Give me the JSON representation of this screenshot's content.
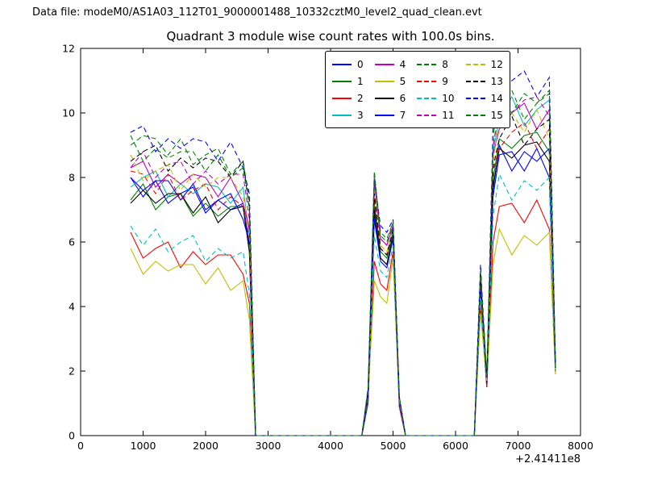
{
  "header": {
    "data_file_label": "Data file: modeM0/AS1A03_112T01_9000001488_10332cztM0_level2_quad_clean.evt"
  },
  "chart_data": {
    "type": "line",
    "title": "Quadrant 3 module wise count rates with 100.0s bins.",
    "xlabel": "",
    "ylabel": "",
    "x_offset_label": "+2.41411e8",
    "xlim": [
      0,
      8000
    ],
    "ylim": [
      0,
      12
    ],
    "x_ticks": [
      0,
      1000,
      2000,
      3000,
      4000,
      5000,
      6000,
      7000,
      8000
    ],
    "y_ticks": [
      0,
      2,
      4,
      6,
      8,
      10,
      12
    ],
    "grid": false,
    "legend_position": "upper center",
    "legend_columns": 4,
    "x": [
      800,
      1000,
      1200,
      1400,
      1600,
      1800,
      2000,
      2200,
      2400,
      2600,
      2700,
      2800,
      3000,
      3500,
      4000,
      4500,
      4600,
      4700,
      4800,
      4900,
      5000,
      5100,
      5200,
      5500,
      6000,
      6300,
      6400,
      6500,
      6600,
      6700,
      6900,
      7100,
      7300,
      7500,
      7600
    ],
    "series": [
      {
        "name": "0",
        "color": "#0000ff",
        "dash": false,
        "values": [
          8.0,
          7.4,
          7.9,
          7.2,
          7.5,
          7.7,
          6.9,
          7.3,
          7.0,
          7.2,
          5.9,
          0,
          0,
          0,
          0,
          0,
          1.0,
          6.9,
          5.5,
          5.3,
          6.2,
          0.9,
          0,
          0,
          0,
          0,
          4.6,
          1.5,
          7.6,
          9.0,
          8.2,
          8.8,
          8.5,
          8.9,
          2.0
        ]
      },
      {
        "name": "1",
        "color": "#008000",
        "dash": false,
        "values": [
          7.3,
          7.8,
          7.0,
          7.4,
          7.5,
          6.8,
          7.2,
          6.8,
          7.1,
          7.1,
          5.7,
          0,
          0,
          0,
          0,
          0,
          1.0,
          7.2,
          5.7,
          5.5,
          6.3,
          0.9,
          0,
          0,
          0,
          0,
          4.7,
          1.5,
          7.9,
          9.2,
          8.9,
          9.3,
          9.4,
          8.8,
          2.0
        ]
      },
      {
        "name": "2",
        "color": "#ff0000",
        "dash": false,
        "values": [
          6.3,
          5.5,
          5.8,
          6.0,
          5.2,
          5.7,
          5.3,
          5.6,
          5.6,
          5.0,
          4.1,
          0,
          0,
          0,
          0,
          0,
          1.1,
          5.4,
          4.7,
          4.5,
          5.7,
          0.9,
          0,
          0,
          0,
          0,
          4.0,
          1.5,
          6.0,
          7.1,
          7.2,
          6.6,
          7.3,
          6.4,
          1.9
        ]
      },
      {
        "name": "3",
        "color": "#00bfbf",
        "dash": false,
        "values": [
          7.7,
          8.0,
          8.2,
          7.4,
          7.8,
          7.5,
          7.8,
          7.7,
          7.2,
          7.7,
          6.2,
          0,
          0,
          0,
          0,
          0,
          1.1,
          8.0,
          6.1,
          5.9,
          6.5,
          1.0,
          0,
          0,
          0,
          0,
          5.0,
          1.6,
          8.8,
          9.8,
          10.5,
          9.6,
          10.1,
          10.4,
          2.1
        ]
      },
      {
        "name": "4",
        "color": "#bf00bf",
        "dash": false,
        "values": [
          8.3,
          8.5,
          7.7,
          8.1,
          7.8,
          8.1,
          8.0,
          7.4,
          8.0,
          7.2,
          6.4,
          0,
          0,
          0,
          0,
          0,
          1.1,
          7.9,
          6.1,
          5.9,
          6.5,
          1.0,
          0,
          0,
          0,
          0,
          5.0,
          1.6,
          8.7,
          9.5,
          10.0,
          10.3,
          9.5,
          10.1,
          2.0
        ]
      },
      {
        "name": "5",
        "color": "#bfbf00",
        "dash": false,
        "values": [
          5.8,
          5.0,
          5.4,
          5.1,
          5.3,
          5.3,
          4.7,
          5.2,
          4.5,
          4.8,
          3.6,
          0,
          0,
          0,
          0,
          0,
          1.2,
          4.8,
          4.3,
          4.1,
          5.5,
          1.0,
          0,
          0,
          0,
          0,
          3.8,
          1.6,
          5.3,
          6.4,
          5.6,
          6.2,
          5.9,
          6.3,
          1.9
        ]
      },
      {
        "name": "6",
        "color": "#000000",
        "dash": false,
        "values": [
          7.2,
          7.6,
          7.2,
          7.5,
          7.5,
          6.9,
          7.4,
          6.6,
          7.0,
          7.1,
          5.7,
          0,
          0,
          0,
          0,
          0,
          1.2,
          7.0,
          5.5,
          5.3,
          6.2,
          1.0,
          0,
          0,
          0,
          0,
          4.6,
          1.6,
          7.7,
          8.9,
          8.6,
          9.0,
          9.1,
          8.5,
          2.0
        ]
      },
      {
        "name": "7",
        "color": "#0000ff",
        "dash": false,
        "values": [
          8.0,
          7.6,
          7.9,
          7.9,
          7.3,
          7.8,
          7.0,
          7.3,
          7.5,
          6.7,
          6.0,
          0,
          0,
          0,
          0,
          0,
          1.2,
          6.7,
          5.4,
          5.2,
          6.1,
          1.0,
          0,
          0,
          0,
          0,
          4.5,
          1.6,
          7.4,
          8.7,
          8.8,
          8.2,
          8.9,
          8.0,
          2.0
        ]
      },
      {
        "name": "8",
        "color": "#008000",
        "dash": true,
        "values": [
          9.0,
          9.3,
          9.2,
          8.7,
          9.2,
          8.4,
          8.7,
          8.9,
          8.1,
          8.5,
          7.3,
          0,
          0,
          0,
          0,
          0,
          1.2,
          8.2,
          6.2,
          6.0,
          6.6,
          1.1,
          0,
          0,
          0,
          0,
          5.1,
          1.7,
          9.0,
          10.0,
          10.7,
          9.8,
          10.3,
          10.6,
          2.1
        ]
      },
      {
        "name": "9",
        "color": "#ff0000",
        "dash": true,
        "values": [
          8.2,
          8.1,
          7.5,
          8.1,
          7.3,
          7.6,
          7.8,
          7.0,
          7.4,
          7.1,
          6.1,
          0,
          0,
          0,
          0,
          0,
          1.3,
          7.4,
          5.8,
          5.6,
          6.3,
          1.1,
          0,
          0,
          0,
          0,
          4.8,
          1.7,
          8.2,
          8.9,
          9.4,
          9.7,
          8.9,
          9.5,
          2.0
        ]
      },
      {
        "name": "10",
        "color": "#00bfbf",
        "dash": true,
        "values": [
          6.5,
          5.9,
          6.4,
          5.7,
          6.0,
          6.2,
          5.4,
          5.8,
          5.5,
          5.7,
          4.4,
          0,
          0,
          0,
          0,
          0,
          1.3,
          6.2,
          5.1,
          4.9,
          5.9,
          1.1,
          0,
          0,
          0,
          0,
          4.3,
          1.7,
          6.8,
          8.1,
          7.3,
          7.9,
          7.6,
          8.0,
          2.0
        ]
      },
      {
        "name": "11",
        "color": "#bf00bf",
        "dash": true,
        "values": [
          8.3,
          8.8,
          8.0,
          8.4,
          8.5,
          7.8,
          8.2,
          7.8,
          8.1,
          8.1,
          6.7,
          0,
          0,
          0,
          0,
          0,
          1.3,
          8.1,
          6.1,
          5.9,
          6.5,
          1.1,
          0,
          0,
          0,
          0,
          5.0,
          1.7,
          8.9,
          10.3,
          10.0,
          10.4,
          10.5,
          9.9,
          2.1
        ]
      },
      {
        "name": "12",
        "color": "#bfbf00",
        "dash": true,
        "values": [
          8.7,
          7.9,
          8.2,
          8.4,
          7.6,
          8.1,
          7.7,
          8.0,
          8.0,
          7.4,
          6.5,
          0,
          0,
          0,
          0,
          0,
          1.4,
          7.7,
          5.9,
          5.7,
          6.4,
          1.1,
          0,
          0,
          0,
          0,
          4.9,
          1.7,
          8.4,
          9.9,
          10.0,
          9.4,
          10.1,
          9.2,
          2.0
        ]
      },
      {
        "name": "13",
        "color": "#000000",
        "dash": true,
        "values": [
          8.5,
          8.8,
          9.0,
          8.2,
          8.6,
          8.3,
          8.6,
          8.5,
          8.0,
          8.5,
          7.0,
          0,
          0,
          0,
          0,
          0,
          1.4,
          7.5,
          5.8,
          5.6,
          6.4,
          1.2,
          0,
          0,
          0,
          0,
          4.8,
          1.8,
          8.3,
          9.2,
          9.9,
          9.0,
          9.5,
          9.8,
          2.1
        ]
      },
      {
        "name": "14",
        "color": "#0000ff",
        "dash": true,
        "values": [
          9.4,
          9.6,
          8.8,
          9.2,
          8.9,
          9.2,
          9.1,
          8.5,
          9.1,
          8.3,
          7.5,
          0,
          0,
          0,
          0,
          0,
          1.4,
          7.9,
          6.5,
          6.3,
          6.7,
          1.2,
          0,
          0,
          0,
          0,
          5.3,
          1.8,
          9.6,
          10.5,
          11.0,
          11.3,
          10.5,
          11.1,
          2.1
        ]
      },
      {
        "name": "15",
        "color": "#008000",
        "dash": true,
        "values": [
          9.3,
          8.5,
          8.9,
          8.6,
          8.8,
          8.8,
          8.2,
          8.7,
          8.0,
          8.3,
          7.1,
          0,
          0,
          0,
          0,
          0,
          1.5,
          8.1,
          6.3,
          6.1,
          6.6,
          1.2,
          0,
          0,
          0,
          0,
          5.1,
          1.8,
          9.2,
          10.8,
          10.0,
          10.6,
          10.3,
          10.7,
          2.1
        ]
      }
    ]
  }
}
